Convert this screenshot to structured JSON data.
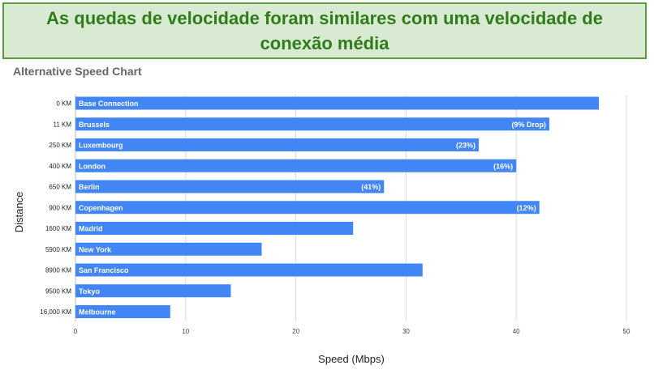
{
  "banner": {
    "text": "As quedas de velocidade foram similares com uma velocidade de conexão média"
  },
  "colors": {
    "bar": "#4285f4",
    "banner_bg": "#d9ead3",
    "banner_border": "#5e9b3e",
    "banner_text": "#2f7d18",
    "grid": "#dddddd"
  },
  "chart_data": {
    "type": "bar",
    "orientation": "horizontal",
    "title": "Alternative Speed Chart",
    "xlabel": "Speed (Mbps)",
    "ylabel": "Distance",
    "xlim": [
      0,
      50
    ],
    "xticks": [
      0,
      10,
      20,
      30,
      40,
      50
    ],
    "grid": true,
    "categories": [
      "0 KM",
      "11 KM",
      "250 KM",
      "400 KM",
      "650 KM",
      "900 KM",
      "1600 KM",
      "5900 KM",
      "8900 KM",
      "9500 KM",
      "16,000 KM"
    ],
    "bar_names": [
      "Base Connection",
      "Brussels",
      "Luxembourg",
      "London",
      "Berlin",
      "Copenhagen",
      "Madrid",
      "New York",
      "San Francisco",
      "Tokyo",
      "Melbourne"
    ],
    "annotations": [
      "",
      "(9% Drop)",
      "(23%)",
      "(16%)",
      "(41%)",
      "(12%)",
      "",
      "",
      "",
      "",
      ""
    ],
    "values": [
      47.5,
      43.0,
      36.6,
      40.0,
      28.0,
      42.1,
      25.2,
      16.9,
      31.5,
      14.1,
      8.6
    ]
  }
}
